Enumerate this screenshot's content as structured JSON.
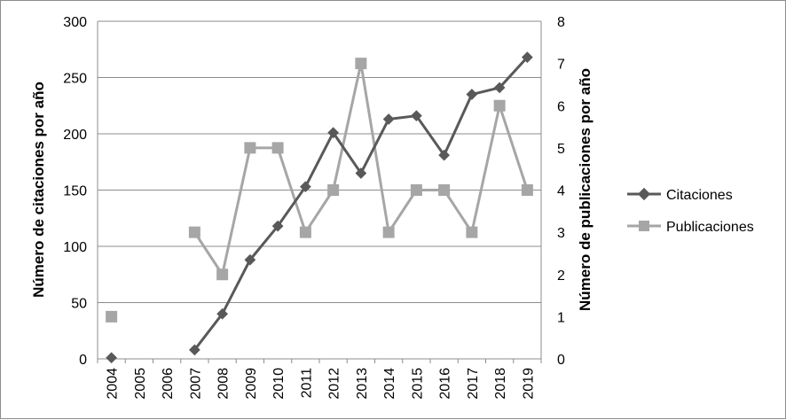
{
  "chart_data": {
    "type": "line",
    "categories": [
      "2004",
      "2005",
      "2006",
      "2007",
      "2008",
      "2009",
      "2010",
      "2011",
      "2012",
      "2013",
      "2014",
      "2015",
      "2016",
      "2017",
      "2018",
      "2019"
    ],
    "y_left": {
      "label": "Número de citaciones por año",
      "range": [
        0,
        300
      ],
      "ticks": [
        0,
        50,
        100,
        150,
        200,
        250,
        300
      ]
    },
    "y_right": {
      "label": "Número de publicaciones por año",
      "range": [
        0,
        8
      ],
      "ticks": [
        0,
        1,
        2,
        3,
        4,
        5,
        6,
        7,
        8
      ]
    },
    "grid": true,
    "legend_position": "right",
    "series": [
      {
        "name": "Citaciones",
        "axis": "left",
        "marker": "diamond",
        "color": "#595959",
        "values": [
          1,
          null,
          null,
          8,
          40,
          88,
          118,
          153,
          201,
          165,
          213,
          216,
          181,
          235,
          241,
          268
        ]
      },
      {
        "name": "Publicaciones",
        "axis": "right",
        "marker": "square",
        "color": "#a6a6a6",
        "values": [
          1,
          null,
          null,
          3,
          2,
          5,
          5,
          3,
          4,
          7,
          3,
          4,
          4,
          3,
          6,
          4
        ]
      }
    ]
  }
}
